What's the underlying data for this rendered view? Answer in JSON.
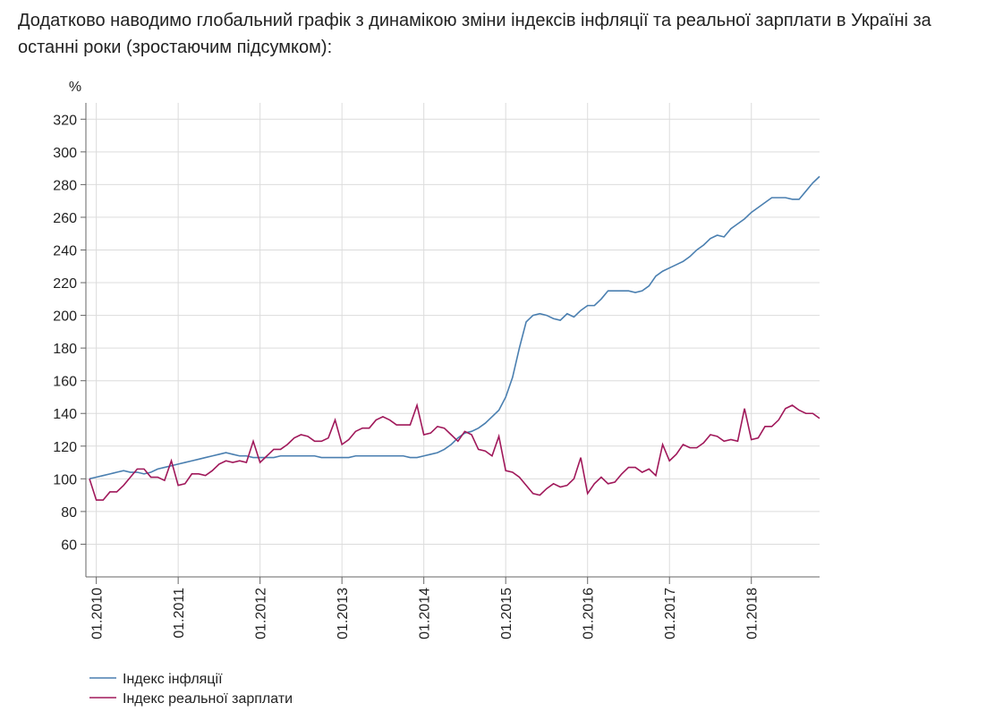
{
  "text": {
    "line1": "Додатково наводимо глобальний графік з динамікою зміни індексів інфляції та реальної зарплати в Україні за",
    "line2": "останні роки (зростаючим підсумком):"
  },
  "chart_data": {
    "type": "line",
    "ylabel": "%",
    "x": [
      "12.2009",
      "01.2010",
      "02.2010",
      "03.2010",
      "04.2010",
      "05.2010",
      "06.2010",
      "07.2010",
      "08.2010",
      "09.2010",
      "10.2010",
      "11.2010",
      "12.2010",
      "01.2011",
      "02.2011",
      "03.2011",
      "04.2011",
      "05.2011",
      "06.2011",
      "07.2011",
      "08.2011",
      "09.2011",
      "10.2011",
      "11.2011",
      "12.2011",
      "01.2012",
      "02.2012",
      "03.2012",
      "04.2012",
      "05.2012",
      "06.2012",
      "07.2012",
      "08.2012",
      "09.2012",
      "10.2012",
      "11.2012",
      "12.2012",
      "01.2013",
      "02.2013",
      "03.2013",
      "04.2013",
      "05.2013",
      "06.2013",
      "07.2013",
      "08.2013",
      "09.2013",
      "10.2013",
      "11.2013",
      "12.2013",
      "01.2014",
      "02.2014",
      "03.2014",
      "04.2014",
      "05.2014",
      "06.2014",
      "07.2014",
      "08.2014",
      "09.2014",
      "10.2014",
      "11.2014",
      "12.2014",
      "01.2015",
      "02.2015",
      "03.2015",
      "04.2015",
      "05.2015",
      "06.2015",
      "07.2015",
      "08.2015",
      "09.2015",
      "10.2015",
      "11.2015",
      "12.2015",
      "01.2016",
      "02.2016",
      "03.2016",
      "04.2016",
      "05.2016",
      "06.2016",
      "07.2016",
      "08.2016",
      "09.2016",
      "10.2016",
      "11.2016",
      "12.2016",
      "01.2017",
      "02.2017",
      "03.2017",
      "04.2017",
      "05.2017",
      "06.2017",
      "07.2017",
      "08.2017",
      "09.2017",
      "10.2017",
      "11.2017",
      "12.2017",
      "01.2018",
      "02.2018",
      "03.2018",
      "04.2018",
      "05.2018",
      "06.2018",
      "07.2018",
      "08.2018",
      "09.2018",
      "10.2018",
      "11.2018"
    ],
    "series": [
      {
        "name": "Індекс інфляції",
        "color": "#4a7fb0",
        "values": [
          100,
          101,
          102,
          103,
          104,
          105,
          104,
          104,
          103,
          104,
          106,
          107,
          108,
          109,
          110,
          111,
          112,
          113,
          114,
          115,
          116,
          115,
          114,
          114,
          113,
          113,
          113,
          113,
          114,
          114,
          114,
          114,
          114,
          114,
          113,
          113,
          113,
          113,
          113,
          114,
          114,
          114,
          114,
          114,
          114,
          114,
          114,
          113,
          113,
          114,
          115,
          116,
          118,
          121,
          125,
          128,
          129,
          131,
          134,
          138,
          142,
          150,
          162,
          180,
          196,
          200,
          201,
          200,
          198,
          197,
          201,
          199,
          203,
          206,
          206,
          210,
          215,
          215,
          215,
          215,
          214,
          215,
          218,
          224,
          227,
          229,
          231,
          233,
          236,
          240,
          243,
          247,
          249,
          248,
          253,
          256,
          259,
          263,
          266,
          269,
          272,
          272,
          272,
          271,
          271,
          276,
          281,
          285
        ]
      },
      {
        "name": "Індекс реальної зарплати",
        "color": "#a0185a",
        "values": [
          100,
          87,
          87,
          92,
          92,
          96,
          101,
          106,
          106,
          101,
          101,
          99,
          111,
          96,
          97,
          103,
          103,
          102,
          105,
          109,
          111,
          110,
          111,
          110,
          123,
          110,
          114,
          118,
          118,
          121,
          125,
          127,
          126,
          123,
          123,
          125,
          136,
          121,
          124,
          129,
          131,
          131,
          136,
          138,
          136,
          133,
          133,
          133,
          145,
          127,
          128,
          132,
          131,
          127,
          123,
          129,
          127,
          118,
          117,
          114,
          126,
          105,
          104,
          101,
          96,
          91,
          90,
          94,
          97,
          95,
          96,
          100,
          113,
          91,
          97,
          101,
          97,
          98,
          103,
          107,
          107,
          104,
          106,
          102,
          121,
          111,
          115,
          121,
          119,
          119,
          122,
          127,
          126,
          123,
          124,
          123,
          143,
          124,
          125,
          132,
          132,
          136,
          143,
          145,
          142,
          140,
          140,
          137
        ]
      }
    ],
    "xticks": [
      "01.2010",
      "01.2011",
      "01.2012",
      "01.2013",
      "01.2014",
      "01.2015",
      "01.2016",
      "01.2017",
      "01.2018"
    ],
    "ylim": [
      40,
      330
    ],
    "yticks": [
      60,
      80,
      100,
      120,
      140,
      160,
      180,
      200,
      220,
      240,
      260,
      280,
      300,
      320
    ],
    "grid": true
  }
}
